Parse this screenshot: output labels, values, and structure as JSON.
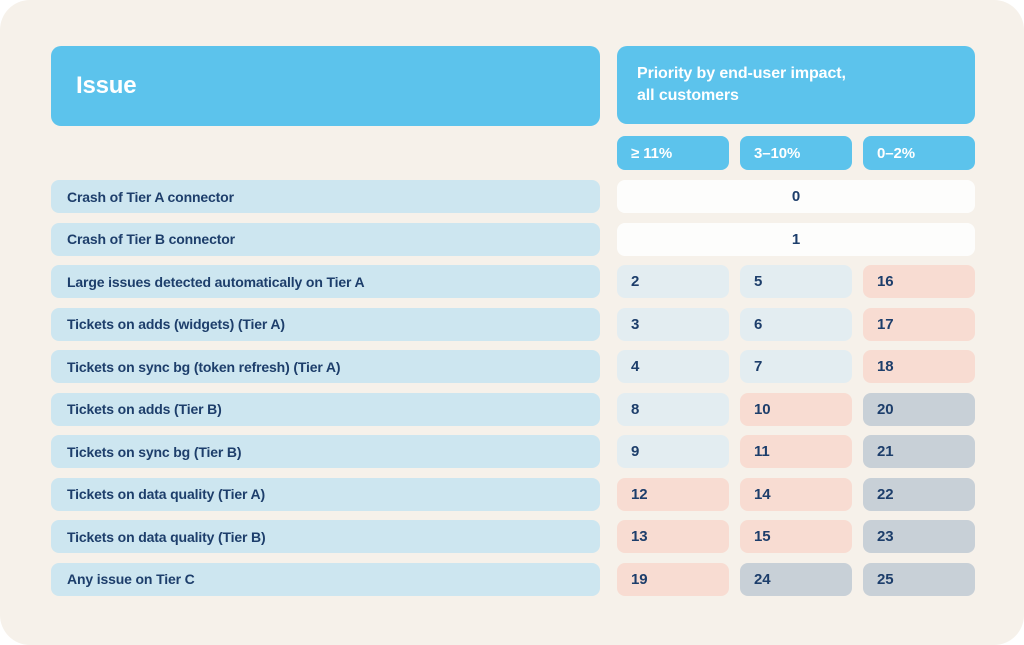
{
  "colors": {
    "page_white": "#ffffff",
    "canvas_beige": "#f6f1ea",
    "accent_blue": "#5cc3ec",
    "label_blue": "#cde6f0",
    "cell_white": "#fdfdfc",
    "cell_light": "#e3edf1",
    "cell_pink": "#f8dcd2",
    "cell_gray": "#c8d0d7",
    "text_navy": "#1d3e6b"
  },
  "header": {
    "issue_label": "Issue",
    "priority_label": "Priority by end-user impact,\nall customers"
  },
  "chart_data": {
    "type": "table",
    "title": "Priority by end-user impact, all customers",
    "row_header": "Issue",
    "columns": [
      "≥ 11%",
      "3–10%",
      "0–2%"
    ],
    "rows": [
      {
        "issue": "Crash of Tier A connector",
        "span": true,
        "values": [
          0
        ],
        "tones": [
          "white"
        ]
      },
      {
        "issue": "Crash of Tier B connector",
        "span": true,
        "values": [
          1
        ],
        "tones": [
          "white"
        ]
      },
      {
        "issue": "Large issues detected automatically on Tier A",
        "span": false,
        "values": [
          2,
          5,
          16
        ],
        "tones": [
          "light",
          "light",
          "pink"
        ]
      },
      {
        "issue": "Tickets on adds (widgets) (Tier A)",
        "span": false,
        "values": [
          3,
          6,
          17
        ],
        "tones": [
          "light",
          "light",
          "pink"
        ]
      },
      {
        "issue": "Tickets on sync bg (token refresh) (Tier A)",
        "span": false,
        "values": [
          4,
          7,
          18
        ],
        "tones": [
          "light",
          "light",
          "pink"
        ]
      },
      {
        "issue": "Tickets on adds (Tier B)",
        "span": false,
        "values": [
          8,
          10,
          20
        ],
        "tones": [
          "light",
          "pink",
          "gray"
        ]
      },
      {
        "issue": "Tickets on sync bg (Tier B)",
        "span": false,
        "values": [
          9,
          11,
          21
        ],
        "tones": [
          "light",
          "pink",
          "gray"
        ]
      },
      {
        "issue": "Tickets on data quality (Tier A)",
        "span": false,
        "values": [
          12,
          14,
          22
        ],
        "tones": [
          "pink",
          "pink",
          "gray"
        ]
      },
      {
        "issue": "Tickets on data quality (Tier B)",
        "span": false,
        "values": [
          13,
          15,
          23
        ],
        "tones": [
          "pink",
          "pink",
          "gray"
        ]
      },
      {
        "issue": "Any issue on Tier C",
        "span": false,
        "values": [
          19,
          24,
          25
        ],
        "tones": [
          "pink",
          "gray",
          "gray"
        ]
      }
    ]
  }
}
